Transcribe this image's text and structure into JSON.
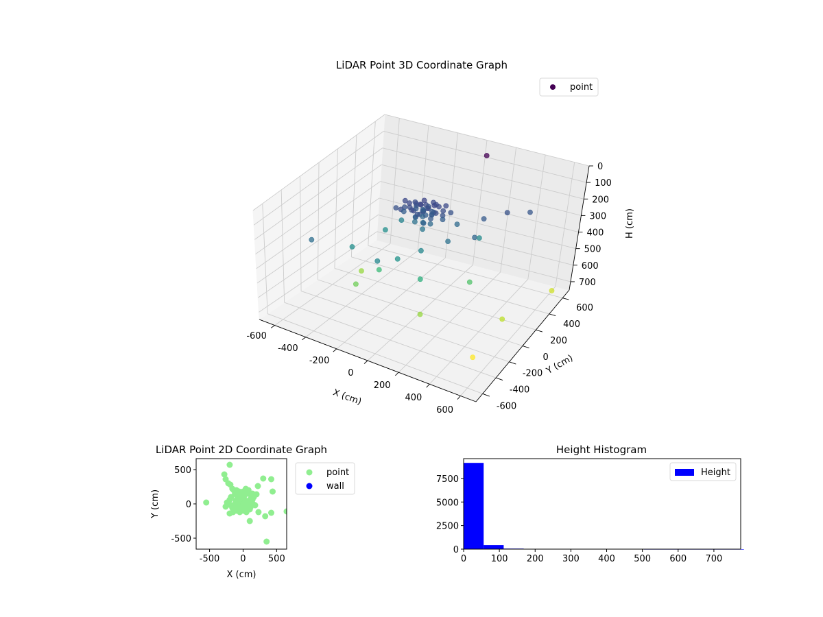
{
  "chart_data": [
    {
      "type": "scatter",
      "title": "LiDAR Point 3D Coordinate Graph",
      "xlabel": "X (cm)",
      "ylabel": "Y (cm)",
      "zlabel": "H (cm)",
      "xlim": [
        -700,
        700
      ],
      "ylim": [
        -700,
        700
      ],
      "zlim": [
        750,
        0
      ],
      "x_ticks": [
        "-600",
        "-400",
        "-200",
        "0",
        "200",
        "400",
        "600"
      ],
      "y_ticks": [
        "-600",
        "-400",
        "-200",
        "0",
        "200",
        "400",
        "600"
      ],
      "z_ticks": [
        "0",
        "100",
        "200",
        "300",
        "400",
        "500",
        "600",
        "700"
      ],
      "grid": true,
      "colormap": "viridis",
      "legend": {
        "placement": "top-right",
        "entries": [
          {
            "label": "point",
            "color": "#440154"
          }
        ]
      },
      "series": [
        {
          "name": "point",
          "points": [
            [
              -60,
              20,
              150
            ],
            [
              -40,
              40,
              160
            ],
            [
              -20,
              0,
              140
            ],
            [
              0,
              30,
              150
            ],
            [
              20,
              10,
              160
            ],
            [
              40,
              -10,
              150
            ],
            [
              60,
              20,
              140
            ],
            [
              -80,
              -20,
              160
            ],
            [
              -100,
              10,
              150
            ],
            [
              80,
              40,
              150
            ],
            [
              100,
              -30,
              160
            ],
            [
              -30,
              60,
              140
            ],
            [
              30,
              -60,
              150
            ],
            [
              -50,
              -50,
              160
            ],
            [
              50,
              60,
              150
            ],
            [
              10,
              -20,
              170
            ],
            [
              -10,
              20,
              180
            ],
            [
              70,
              0,
              170
            ],
            [
              -70,
              40,
              170
            ],
            [
              0,
              -40,
              180
            ],
            [
              120,
              20,
              160
            ],
            [
              -120,
              -10,
              170
            ],
            [
              90,
              -60,
              160
            ],
            [
              -90,
              60,
              160
            ],
            [
              20,
              80,
              150
            ],
            [
              -20,
              -80,
              150
            ],
            [
              140,
              -20,
              170
            ],
            [
              -140,
              30,
              150
            ],
            [
              40,
              30,
              200
            ],
            [
              -40,
              -20,
              210
            ],
            [
              0,
              0,
              240
            ],
            [
              20,
              -40,
              260
            ],
            [
              -20,
              30,
              220
            ],
            [
              60,
              -20,
              230
            ],
            [
              -60,
              10,
              250
            ],
            [
              10,
              10,
              200
            ],
            [
              30,
              50,
              190
            ],
            [
              -30,
              -40,
              200
            ],
            [
              160,
              40,
              170
            ],
            [
              -160,
              -40,
              170
            ],
            [
              110,
              70,
              150
            ],
            [
              -110,
              -70,
              160
            ],
            [
              0,
              60,
              170
            ],
            [
              0,
              -70,
              170
            ],
            [
              75,
              -45,
              190
            ],
            [
              -75,
              45,
              190
            ],
            [
              130,
              0,
              200
            ],
            [
              -130,
              0,
              200
            ],
            [
              45,
              -75,
              210
            ],
            [
              -45,
              75,
              200
            ],
            [
              350,
              100,
              190
            ],
            [
              450,
              200,
              170
            ],
            [
              550,
              300,
              180
            ],
            [
              400,
              -100,
              220
            ],
            [
              250,
              -150,
              250
            ],
            [
              200,
              50,
              230
            ],
            [
              -300,
              -300,
              330
            ],
            [
              -250,
              0,
              330
            ],
            [
              0,
              -300,
              340
            ],
            [
              300,
              150,
              320
            ],
            [
              100,
              -200,
              310
            ],
            [
              -200,
              100,
              300
            ],
            [
              150,
              -300,
              420
            ],
            [
              -150,
              -250,
              450
            ],
            [
              350,
              -50,
              480
            ],
            [
              -250,
              -350,
              520
            ],
            [
              -350,
              -100,
              560
            ],
            [
              200,
              -400,
              560
            ],
            [
              700,
              400,
              620
            ],
            [
              600,
              -100,
              600
            ],
            [
              500,
              -300,
              740
            ],
            [
              -50,
              -450,
              310
            ],
            [
              -450,
              -500,
              240
            ],
            [
              120,
              500,
              0
            ]
          ]
        }
      ]
    },
    {
      "type": "scatter",
      "title": "LiDAR Point 2D Coordinate Graph",
      "xlabel": "X (cm)",
      "ylabel": "Y (cm)",
      "xlim": [
        -700,
        650
      ],
      "ylim": [
        -660,
        660
      ],
      "x_ticks": [
        "-500",
        "0",
        "500"
      ],
      "y_ticks": [
        "-500",
        "0",
        "500"
      ],
      "legend": {
        "placement": "outside-right",
        "entries": [
          {
            "label": "point",
            "color": "#90ee90"
          },
          {
            "label": "wall",
            "color": "#0000ff"
          }
        ]
      },
      "series": [
        {
          "name": "point",
          "points": [
            [
              -550,
              20
            ],
            [
              -280,
              430
            ],
            [
              -260,
              360
            ],
            [
              -220,
              300
            ],
            [
              -190,
              280
            ],
            [
              -200,
              570
            ],
            [
              -160,
              220
            ],
            [
              -140,
              200
            ],
            [
              -120,
              150
            ],
            [
              -100,
              130
            ],
            [
              -80,
              100
            ],
            [
              -60,
              60
            ],
            [
              -40,
              80
            ],
            [
              -20,
              40
            ],
            [
              0,
              20
            ],
            [
              20,
              60
            ],
            [
              40,
              40
            ],
            [
              60,
              20
            ],
            [
              80,
              0
            ],
            [
              100,
              -20
            ],
            [
              120,
              40
            ],
            [
              140,
              60
            ],
            [
              160,
              -10
            ],
            [
              180,
              -20
            ],
            [
              -180,
              -20
            ],
            [
              -160,
              -60
            ],
            [
              -140,
              -20
            ],
            [
              -120,
              0
            ],
            [
              -100,
              -40
            ],
            [
              -80,
              -60
            ],
            [
              -60,
              -80
            ],
            [
              -40,
              -20
            ],
            [
              -20,
              -40
            ],
            [
              0,
              -60
            ],
            [
              20,
              -80
            ],
            [
              40,
              -20
            ],
            [
              60,
              -60
            ],
            [
              80,
              -40
            ],
            [
              100,
              60
            ],
            [
              120,
              120
            ],
            [
              140,
              150
            ],
            [
              160,
              100
            ],
            [
              -220,
              -10
            ],
            [
              -240,
              20
            ],
            [
              -260,
              -40
            ],
            [
              -200,
              60
            ],
            [
              -180,
              100
            ],
            [
              -150,
              -120
            ],
            [
              -100,
              -100
            ],
            [
              -50,
              -120
            ],
            [
              0,
              -100
            ],
            [
              50,
              -120
            ],
            [
              100,
              -80
            ],
            [
              20,
              120
            ],
            [
              60,
              150
            ],
            [
              80,
              200
            ],
            [
              40,
              220
            ],
            [
              0,
              180
            ],
            [
              -20,
              160
            ],
            [
              -60,
              180
            ],
            [
              -100,
              200
            ],
            [
              -40,
              120
            ],
            [
              200,
              140
            ],
            [
              220,
              260
            ],
            [
              300,
              370
            ],
            [
              420,
              360
            ],
            [
              440,
              180
            ],
            [
              420,
              -130
            ],
            [
              330,
              -180
            ],
            [
              350,
              -550
            ],
            [
              650,
              -110
            ],
            [
              100,
              -250
            ],
            [
              230,
              -120
            ],
            [
              -200,
              -140
            ],
            [
              -10,
              0
            ],
            [
              10,
              -10
            ],
            [
              30,
              10
            ],
            [
              -30,
              -10
            ],
            [
              50,
              -5
            ],
            [
              -50,
              5
            ],
            [
              70,
              30
            ],
            [
              -70,
              -30
            ],
            [
              90,
              10
            ],
            [
              -90,
              -10
            ],
            [
              110,
              -50
            ],
            [
              -110,
              50
            ],
            [
              0,
              90
            ],
            [
              0,
              -30
            ]
          ]
        },
        {
          "name": "wall",
          "points": []
        }
      ]
    },
    {
      "type": "bar",
      "title": "Height Histogram",
      "xlabel": "",
      "ylabel": "",
      "xlim": [
        0,
        775
      ],
      "ylim": [
        0,
        9600
      ],
      "x_ticks": [
        "0",
        "100",
        "200",
        "300",
        "400",
        "500",
        "600",
        "700"
      ],
      "y_ticks": [
        "0",
        "2500",
        "5000",
        "7500"
      ],
      "bin_width": 56,
      "legend": {
        "placement": "top-right",
        "entries": [
          {
            "label": "Height",
            "color": "#0000ff"
          }
        ]
      },
      "series": [
        {
          "name": "Height",
          "values": [
            9150,
            430,
            60,
            18,
            10,
            8,
            6,
            5,
            4,
            3,
            3,
            2,
            2,
            2
          ]
        }
      ]
    }
  ]
}
